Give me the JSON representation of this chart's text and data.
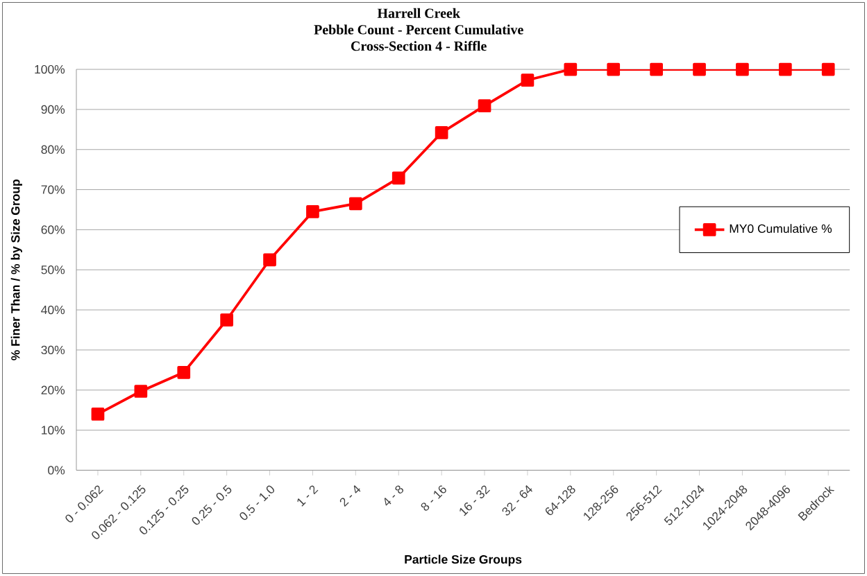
{
  "chart_data": {
    "type": "line",
    "title": "Harrell Creek",
    "subtitle": "Pebble Count - Percent Cumulative\nCross-Section 4 - Riffle",
    "xlabel": "Particle Size Groups",
    "ylabel": "% Finer Than / % by Size Group",
    "categories": [
      "0 - 0.062",
      "0.062 - 0.125",
      "0.125 - 0.25",
      "0.25 - 0.5",
      "0.5 - 1.0",
      "1 - 2",
      "2 - 4",
      "4 - 8",
      "8 - 16",
      "16 - 32",
      "32 - 64",
      "64-128",
      "128-256",
      "256-512",
      "512-1024",
      "1024-2048",
      "2048-4096",
      "Bedrock"
    ],
    "series": [
      {
        "name": "MY0 Cumulative %",
        "color": "#ff0000",
        "values": [
          14.0,
          19.7,
          24.4,
          37.5,
          52.5,
          64.5,
          66.5,
          72.9,
          84.2,
          90.9,
          97.3,
          100,
          100,
          100,
          100,
          100,
          100,
          100
        ]
      }
    ],
    "ylim": [
      0,
      100
    ],
    "yticks": [
      {
        "value": 0,
        "label": "0%"
      },
      {
        "value": 10,
        "label": "10%"
      },
      {
        "value": 20,
        "label": "20%"
      },
      {
        "value": 30,
        "label": "30%"
      },
      {
        "value": 40,
        "label": "40%"
      },
      {
        "value": 50,
        "label": "50%"
      },
      {
        "value": 60,
        "label": "60%"
      },
      {
        "value": 70,
        "label": "70%"
      },
      {
        "value": 80,
        "label": "80%"
      },
      {
        "value": 90,
        "label": "90%"
      },
      {
        "value": 100,
        "label": "100%"
      }
    ],
    "grid": "y",
    "legend": "right",
    "marker": "square",
    "line_style": "solid"
  }
}
